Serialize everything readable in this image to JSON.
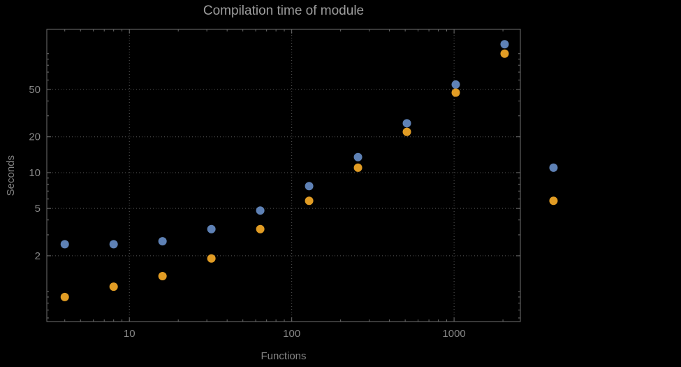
{
  "chart_data": {
    "type": "scatter",
    "title": "Compilation time of module",
    "xlabel": "Functions",
    "ylabel": "Seconds",
    "x_scale": "log",
    "y_scale": "log",
    "grid": true,
    "xlim": [
      3.1,
      2560
    ],
    "ylim": [
      0.56,
      160
    ],
    "x": [
      4,
      8,
      16,
      32,
      64,
      128,
      256,
      512,
      1024,
      2048,
      4096
    ],
    "series": [
      {
        "name": "blue",
        "color": "#5e81b5",
        "values": [
          2.5,
          2.5,
          2.65,
          3.35,
          4.8,
          7.7,
          13.5,
          26,
          55,
          120,
          11
        ]
      },
      {
        "name": "orange",
        "color": "#e19c24",
        "values": [
          0.9,
          1.1,
          1.35,
          1.9,
          3.35,
          5.8,
          11,
          22,
          47,
          100,
          5.8
        ]
      }
    ],
    "x_ticks": [
      {
        "value": 10,
        "label": "10"
      },
      {
        "value": 100,
        "label": "100"
      },
      {
        "value": 1000,
        "label": "1000"
      }
    ],
    "y_ticks": [
      {
        "value": 2,
        "label": "2"
      },
      {
        "value": 5,
        "label": "5"
      },
      {
        "value": 10,
        "label": "10"
      },
      {
        "value": 20,
        "label": "20"
      },
      {
        "value": 50,
        "label": "50"
      }
    ],
    "colors": {
      "background": "#000000",
      "title_text": "#9d9d9d",
      "axis_text": "#848484",
      "tick_text": "#878787",
      "grid": "#585858",
      "frame": "#6f6f6f"
    },
    "legend_position": "none"
  }
}
